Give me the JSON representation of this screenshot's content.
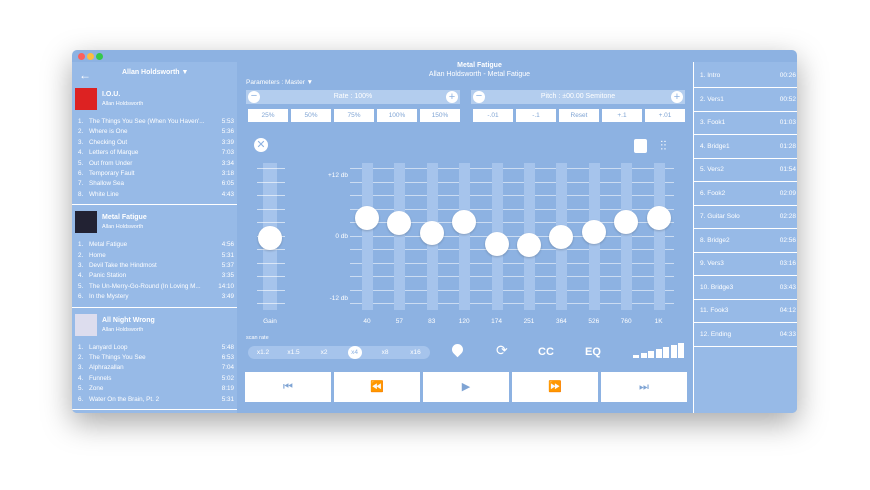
{
  "window": {
    "title": "Metal Fatigue",
    "subtitle": "Allan Holdsworth - Metal Fatigue"
  },
  "sidebar": {
    "artist": "Allan Holdsworth ▼",
    "albums": [
      {
        "title": "I.O.U.",
        "artist": "Allan Holdsworth",
        "tracks": [
          {
            "no": "1.",
            "title": "The Things You See (When You Haven'...",
            "time": "5:53"
          },
          {
            "no": "2.",
            "title": "Where is One",
            "time": "5:36"
          },
          {
            "no": "3.",
            "title": "Checking Out",
            "time": "3:39"
          },
          {
            "no": "4.",
            "title": "Letters of Marque",
            "time": "7:03"
          },
          {
            "no": "5.",
            "title": "Out from Under",
            "time": "3:34"
          },
          {
            "no": "6.",
            "title": "Temporary Fault",
            "time": "3:18"
          },
          {
            "no": "7.",
            "title": "Shallow Sea",
            "time": "6:05"
          },
          {
            "no": "8.",
            "title": "White Line",
            "time": "4:43"
          }
        ]
      },
      {
        "title": "Metal Fatigue",
        "artist": "Allan Holdsworth",
        "tracks": [
          {
            "no": "1.",
            "title": "Metal Fatigue",
            "time": "4:56"
          },
          {
            "no": "2.",
            "title": "Home",
            "time": "5:31"
          },
          {
            "no": "3.",
            "title": "Devil Take the Hindmost",
            "time": "5:37"
          },
          {
            "no": "4.",
            "title": "Panic Station",
            "time": "3:35"
          },
          {
            "no": "5.",
            "title": "The Un-Merry-Go-Round (In Loving M...",
            "time": "14:10"
          },
          {
            "no": "6.",
            "title": "In the Mystery",
            "time": "3:49"
          }
        ]
      },
      {
        "title": "All Night Wrong",
        "artist": "Allan Holdsworth",
        "tracks": [
          {
            "no": "1.",
            "title": "Lanyard Loop",
            "time": "5:48"
          },
          {
            "no": "2.",
            "title": "The Things You See",
            "time": "6:53"
          },
          {
            "no": "3.",
            "title": "Alphrazallan",
            "time": "7:04"
          },
          {
            "no": "4.",
            "title": "Funnels",
            "time": "5:02"
          },
          {
            "no": "5.",
            "title": "Zone",
            "time": "8:19"
          },
          {
            "no": "6.",
            "title": "Water On the Brain, Pt. 2",
            "time": "5:31"
          }
        ]
      }
    ]
  },
  "parameters": {
    "label": "Parameters : Master ▼",
    "rate": {
      "label": "Rate : 100%",
      "presets": [
        "25%",
        "50%",
        "75%",
        "100%",
        "150%"
      ]
    },
    "pitch": {
      "label": "Pitch : ±00.00 Semitone",
      "presets": [
        "-.01",
        "-.1",
        "Reset",
        "+.1",
        "+.01"
      ]
    }
  },
  "eq": {
    "scale": [
      "+12 db",
      "0 db",
      "-12 db"
    ],
    "gain_label": "Gain",
    "bands": [
      "40",
      "57",
      "83",
      "120",
      "174",
      "251",
      "364",
      "526",
      "760",
      "1K"
    ]
  },
  "scan": {
    "label": "scan rate",
    "rates": [
      "x1.2",
      "x1.5",
      "x2",
      "x4",
      "x8",
      "x16"
    ]
  },
  "toolbar": {
    "cc": "CC",
    "eq": "EQ"
  },
  "markers": [
    {
      "name": "1. Intro",
      "time": "00:26"
    },
    {
      "name": "2. Vers1",
      "time": "00:52"
    },
    {
      "name": "3. Fook1",
      "time": "01:03"
    },
    {
      "name": "4. Bridge1",
      "time": "01:28"
    },
    {
      "name": "5. Vers2",
      "time": "01:54"
    },
    {
      "name": "6. Fook2",
      "time": "02:09"
    },
    {
      "name": "7. Guitar Solo",
      "time": "02:28"
    },
    {
      "name": "8. Bridge2",
      "time": "02:56"
    },
    {
      "name": "9. Vers3",
      "time": "03:16"
    },
    {
      "name": "10. Bridge3",
      "time": "03:43"
    },
    {
      "name": "11. Fook3",
      "time": "04:12"
    },
    {
      "name": "12. Ending",
      "time": "04:33"
    }
  ]
}
